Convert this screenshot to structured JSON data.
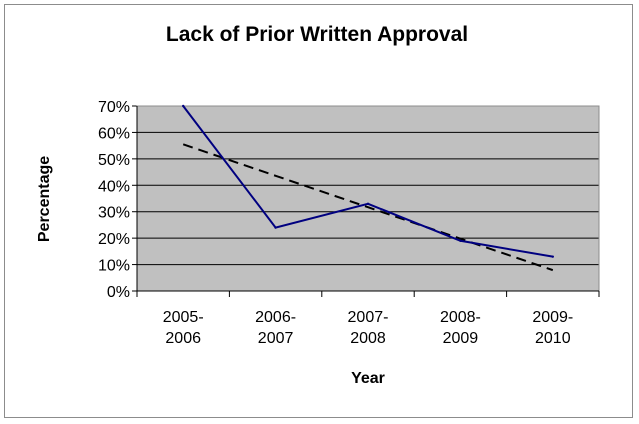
{
  "chart_data": {
    "type": "line",
    "title": "Lack of Prior Written Approval",
    "xlabel": "Year",
    "ylabel": "Percentage",
    "categories": [
      [
        "2005-",
        "2006"
      ],
      [
        "2006-",
        "2007"
      ],
      [
        "2007-",
        "2008"
      ],
      [
        "2008-",
        "2009"
      ],
      [
        "2009-",
        "2010"
      ]
    ],
    "series": [
      {
        "values": [
          70,
          24,
          33,
          19,
          13
        ],
        "color": "#000080",
        "style": "solid"
      }
    ],
    "trendline": {
      "type": "linear",
      "values": [
        55.5,
        43.6,
        31.7,
        19.8,
        7.9
      ],
      "color": "#000000",
      "style": "dashed"
    },
    "ylim": [
      0,
      70
    ],
    "yticks": [
      0,
      10,
      20,
      30,
      40,
      50,
      60,
      70
    ],
    "ytick_format": "percent",
    "grid": true,
    "legend": "none",
    "colors": {
      "plot_background": "#c0c0c0",
      "gridline": "#000000",
      "border": "#8c8c8c"
    }
  }
}
